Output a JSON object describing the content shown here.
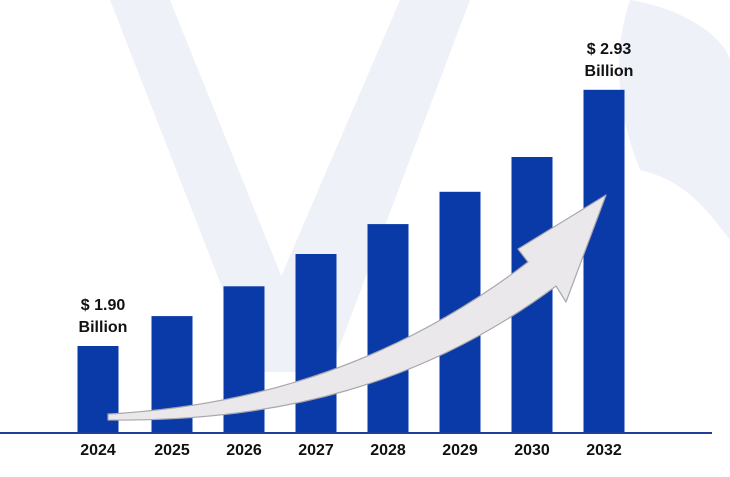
{
  "chart_data": {
    "type": "bar",
    "categories": [
      "2024",
      "2025",
      "2026",
      "2027",
      "2028",
      "2029",
      "2030",
      "2032"
    ],
    "values": [
      1.9,
      2.02,
      2.14,
      2.27,
      2.39,
      2.52,
      2.66,
      2.93
    ],
    "ylim": [
      1.55,
      3.05
    ],
    "annotations": [
      {
        "index": 0,
        "line1": "$ 1.90",
        "line2": "Billion"
      },
      {
        "index": 7,
        "line1": "$ 2.93",
        "line2": "Billion"
      }
    ],
    "grid": false,
    "legend": "none",
    "colors": {
      "bar": "#0a3aa8",
      "axis": "#1f3f9a",
      "label": "#111111",
      "arrow_fill": "#ebe8ec",
      "arrow_stroke": "#a9a7ad",
      "watermark": "#eef1f8"
    }
  }
}
